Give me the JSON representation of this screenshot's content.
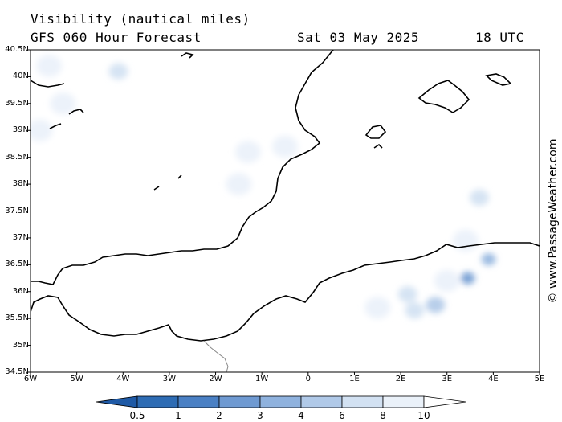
{
  "title": {
    "line1": "Visibility (nautical miles)",
    "line2_left": "GFS 060 Hour Forecast",
    "date": "Sat 03 May 2025",
    "time": "18 UTC"
  },
  "map": {
    "lat_labels": [
      "40.5N",
      "40N",
      "39.5N",
      "39N",
      "38.5N",
      "38N",
      "37.5N",
      "37N",
      "36.5N",
      "36N",
      "35.5N",
      "35N",
      "34.5N"
    ],
    "lon_labels": [
      "6W",
      "5W",
      "4W",
      "3W",
      "2W",
      "1W",
      "0",
      "1E",
      "2E",
      "3E",
      "4E",
      "5E"
    ],
    "lat_range": [
      34.5,
      40.5
    ],
    "lon_range": [
      -6,
      5
    ],
    "visibility_patches": [
      {
        "lon": -5.6,
        "lat": 40.2,
        "vis": 8
      },
      {
        "lon": -4.1,
        "lat": 40.1,
        "vis": 6
      },
      {
        "lon": -5.3,
        "lat": 39.5,
        "vis": 8
      },
      {
        "lon": -5.8,
        "lat": 39.0,
        "vis": 8
      },
      {
        "lon": -1.3,
        "lat": 38.6,
        "vis": 8
      },
      {
        "lon": -0.5,
        "lat": 38.7,
        "vis": 8
      },
      {
        "lon": -1.5,
        "lat": 38.0,
        "vis": 8
      },
      {
        "lon": 3.7,
        "lat": 37.75,
        "vis": 6
      },
      {
        "lon": 3.4,
        "lat": 36.95,
        "vis": 8
      },
      {
        "lon": 3.9,
        "lat": 36.6,
        "vis": 3
      },
      {
        "lon": 3.45,
        "lat": 36.25,
        "vis": 2
      },
      {
        "lon": 3.0,
        "lat": 36.2,
        "vis": 8
      },
      {
        "lon": 2.15,
        "lat": 35.95,
        "vis": 6
      },
      {
        "lon": 2.3,
        "lat": 35.65,
        "vis": 6
      },
      {
        "lon": 2.75,
        "lat": 35.75,
        "vis": 4
      },
      {
        "lon": 1.5,
        "lat": 35.7,
        "vis": 8
      }
    ]
  },
  "colorbar": {
    "ticks": [
      "0.5",
      "1",
      "2",
      "3",
      "4",
      "6",
      "8",
      "10"
    ],
    "colors": [
      "#2e6cb4",
      "#4a80c4",
      "#6f9ad2",
      "#8fb2de",
      "#b0c9e8",
      "#d2e1f2",
      "#eaf1f9",
      "#ffffff"
    ]
  },
  "credit": "© www.PassageWeather.com"
}
